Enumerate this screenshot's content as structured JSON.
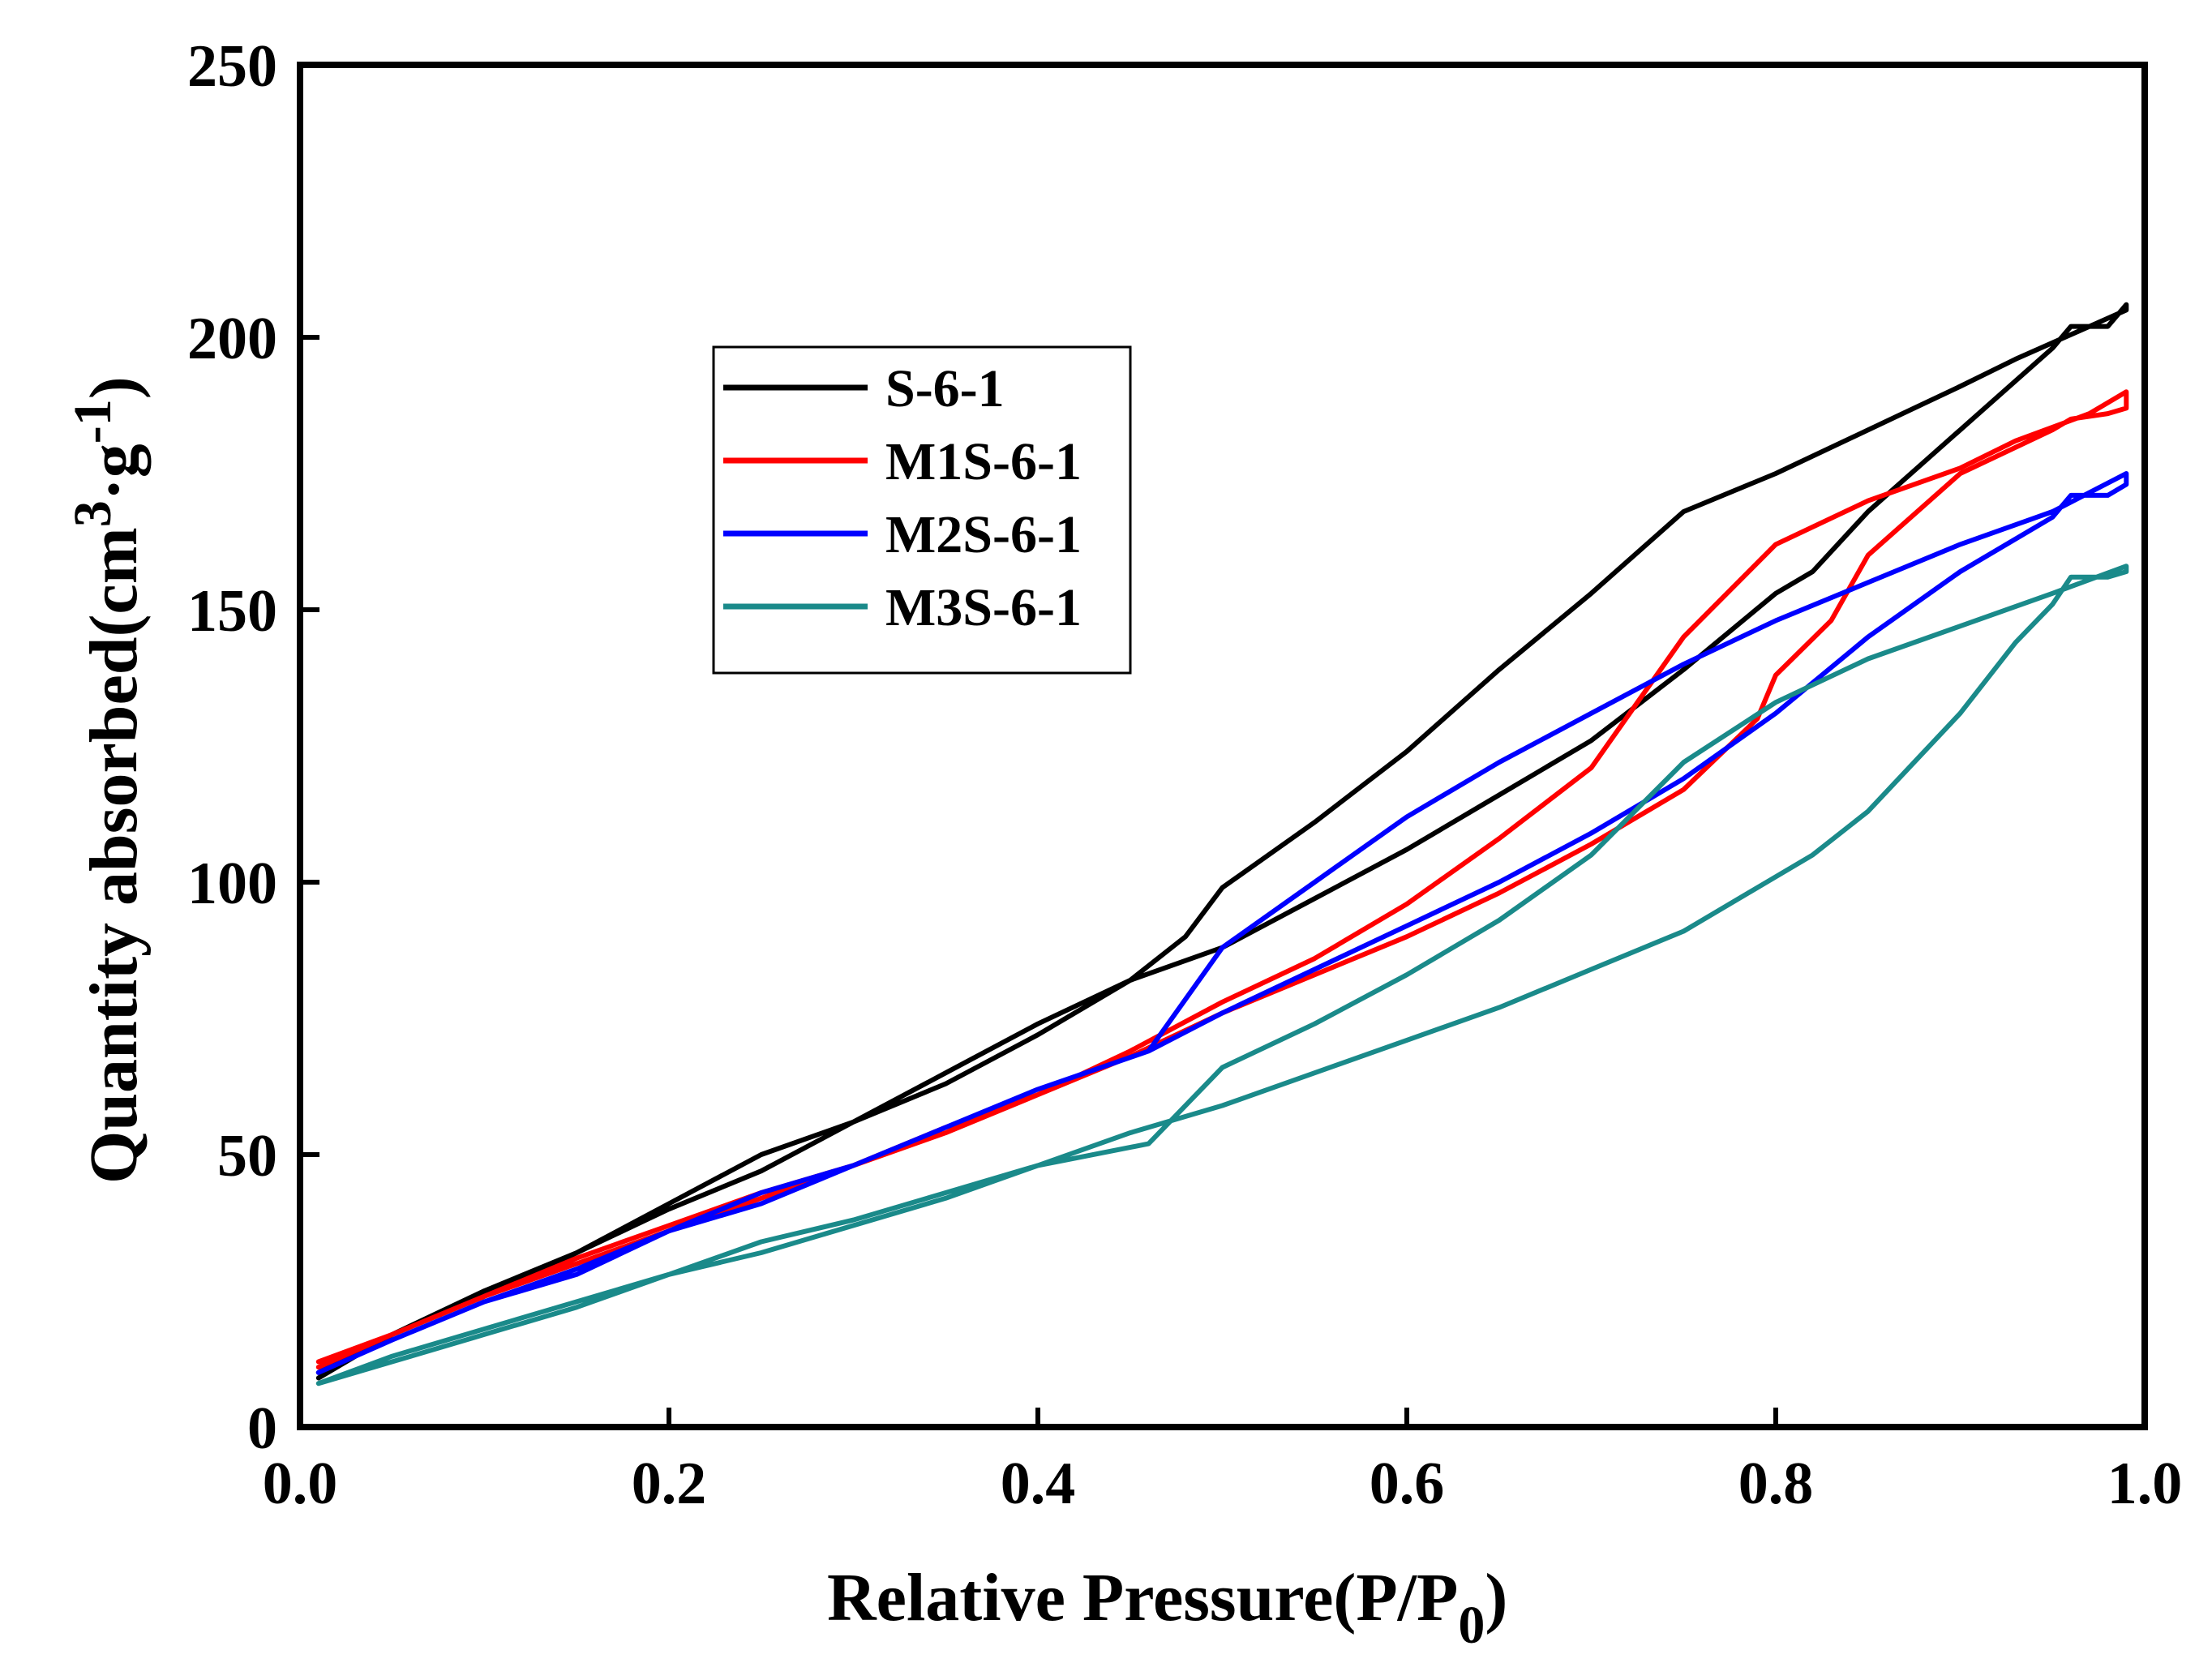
{
  "chart_data": {
    "type": "line",
    "title": "",
    "xlabel": "Relative Pressure(P/P",
    "xlabel_sub": "0",
    "xlabel_close": ")",
    "ylabel": "Quantity absorbed(cm",
    "ylabel_sup1": "3",
    "ylabel_mid": "·g",
    "ylabel_sup2": "-1",
    "ylabel_close": ")",
    "xlim": [
      0.0,
      1.0
    ],
    "ylim": [
      0,
      250
    ],
    "xticks": [
      "0.0",
      "0.2",
      "0.4",
      "0.6",
      "0.8",
      "1.0"
    ],
    "yticks": [
      "0",
      "50",
      "100",
      "150",
      "200",
      "250"
    ],
    "legend_position": "upper-left-center",
    "series": [
      {
        "name": "S-6-1",
        "color": "#000000",
        "x": [
          0.01,
          0.05,
          0.1,
          0.15,
          0.2,
          0.25,
          0.3,
          0.35,
          0.4,
          0.45,
          0.5,
          0.55,
          0.6,
          0.65,
          0.7,
          0.75,
          0.8,
          0.82,
          0.85,
          0.9,
          0.95,
          0.96,
          0.98,
          0.99,
          0.99,
          0.97,
          0.93,
          0.9,
          0.8,
          0.75,
          0.7,
          0.65,
          0.6,
          0.55,
          0.5,
          0.48,
          0.45,
          0.4,
          0.35,
          0.3,
          0.25,
          0.2,
          0.15,
          0.1,
          0.05,
          0.01
        ],
        "y": [
          9,
          17,
          25,
          32,
          40,
          47,
          56,
          65,
          74,
          82,
          88,
          97,
          106,
          116,
          126,
          139,
          153,
          157,
          168,
          183,
          198,
          202,
          202,
          206,
          205,
          202,
          196,
          191,
          175,
          168,
          153,
          139,
          124,
          111,
          99,
          90,
          82,
          72,
          63,
          56,
          50,
          41,
          32,
          24,
          17,
          10
        ]
      },
      {
        "name": "M1S-6-1",
        "color": "#ff0000",
        "x": [
          0.01,
          0.05,
          0.1,
          0.15,
          0.2,
          0.25,
          0.3,
          0.35,
          0.4,
          0.45,
          0.5,
          0.55,
          0.6,
          0.65,
          0.7,
          0.75,
          0.79,
          0.8,
          0.83,
          0.85,
          0.9,
          0.95,
          0.96,
          0.98,
          0.99,
          0.99,
          0.97,
          0.93,
          0.9,
          0.85,
          0.8,
          0.75,
          0.7,
          0.65,
          0.6,
          0.55,
          0.5,
          0.45,
          0.4,
          0.35,
          0.3,
          0.25,
          0.2,
          0.15,
          0.1,
          0.05,
          0.01
        ],
        "y": [
          11,
          17,
          24,
          30,
          36,
          42,
          48,
          55,
          61,
          68,
          76,
          83,
          90,
          98,
          107,
          117,
          130,
          138,
          148,
          160,
          175,
          183,
          185,
          186,
          187,
          190,
          186,
          181,
          176,
          170,
          162,
          145,
          121,
          108,
          96,
          86,
          78,
          69,
          61,
          54,
          48,
          43,
          37,
          31,
          24,
          17,
          12
        ]
      },
      {
        "name": "M2S-6-1",
        "color": "#0000ff",
        "x": [
          0.01,
          0.05,
          0.1,
          0.15,
          0.2,
          0.25,
          0.3,
          0.35,
          0.4,
          0.46,
          0.5,
          0.55,
          0.6,
          0.65,
          0.7,
          0.75,
          0.8,
          0.85,
          0.9,
          0.95,
          0.96,
          0.98,
          0.99,
          0.99,
          0.95,
          0.9,
          0.85,
          0.8,
          0.75,
          0.7,
          0.65,
          0.6,
          0.55,
          0.5,
          0.46,
          0.4,
          0.35,
          0.3,
          0.25,
          0.2,
          0.15,
          0.1,
          0.05,
          0.01
        ],
        "y": [
          10,
          16,
          23,
          29,
          36,
          41,
          48,
          55,
          62,
          69,
          76,
          84,
          92,
          100,
          109,
          119,
          131,
          145,
          157,
          167,
          171,
          171,
          173,
          175,
          168,
          162,
          155,
          148,
          140,
          131,
          122,
          112,
          100,
          88,
          69,
          62,
          55,
          48,
          43,
          36,
          28,
          23,
          16,
          10
        ]
      },
      {
        "name": "M3S-6-1",
        "color": "#1a8a8a",
        "x": [
          0.01,
          0.05,
          0.1,
          0.15,
          0.2,
          0.25,
          0.3,
          0.35,
          0.4,
          0.45,
          0.5,
          0.55,
          0.6,
          0.65,
          0.7,
          0.75,
          0.8,
          0.82,
          0.85,
          0.9,
          0.93,
          0.95,
          0.96,
          0.98,
          0.99,
          0.99,
          0.95,
          0.9,
          0.85,
          0.8,
          0.75,
          0.7,
          0.65,
          0.6,
          0.55,
          0.5,
          0.46,
          0.4,
          0.35,
          0.3,
          0.25,
          0.2,
          0.15,
          0.1,
          0.05,
          0.01
        ],
        "y": [
          8,
          13,
          18,
          23,
          28,
          32,
          37,
          42,
          48,
          54,
          59,
          65,
          71,
          77,
          84,
          91,
          101,
          105,
          113,
          131,
          144,
          151,
          156,
          156,
          157,
          158,
          153,
          147,
          141,
          133,
          122,
          105,
          93,
          83,
          74,
          66,
          52,
          48,
          43,
          38,
          34,
          28,
          22,
          17,
          12,
          8
        ]
      }
    ]
  }
}
